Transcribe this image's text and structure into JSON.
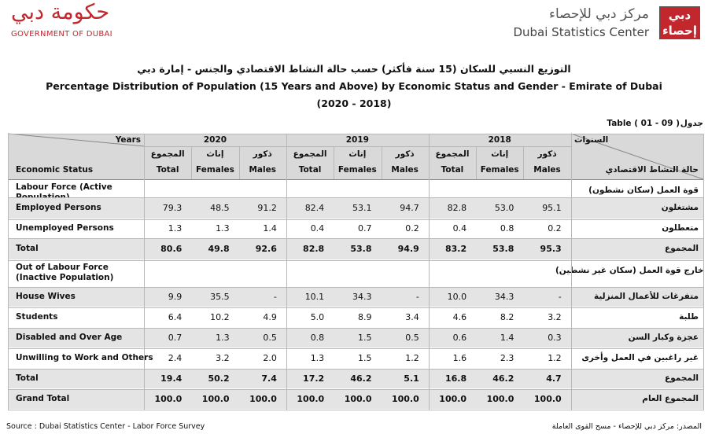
{
  "header": {
    "org_arabic": "حكومة دبي",
    "org_english": "GOVERNMENT OF DUBAI",
    "center_arabic": "مركز دبي للإحصاء",
    "center_english": "Dubai Statistics Center",
    "logo_text": "دبي إحصاء"
  },
  "title": {
    "arabic": "التوزيع النسبي للسكان (15 سنة فأكثر) حسب حالة النشاط الاقتصادي والجنس - إمارة دبي",
    "english": "Percentage Distribution of Population (15 Years and Above) by Economic Status and Gender - Emirate of Dubai",
    "years": "(2020 - 2018)"
  },
  "table_id": {
    "english": "Table ( 01 - 09 )",
    "arabic": "جدول"
  },
  "table": {
    "years_label": "Years",
    "years_label_arabic": "السنوات",
    "years": [
      "2020",
      "2019",
      "2018"
    ],
    "columns": [
      {
        "arabic": "المجموع",
        "english": "Total"
      },
      {
        "arabic": "إناث",
        "english": "Females"
      },
      {
        "arabic": "ذكور",
        "english": "Males"
      }
    ],
    "row_header": "Economic Status",
    "row_header_arabic": "حالة النشاط الاقتصادي",
    "rows": [
      {
        "label": "Labour Force (Active Population)",
        "label_arabic": "قوة العمل (سكان نشطون)"
      },
      {
        "label": "Employed Persons",
        "label_arabic": "مشتغلون",
        "shaded": true,
        "values": [
          "79.3",
          "48.5",
          "91.2",
          "82.4",
          "53.1",
          "94.7",
          "82.8",
          "53.0",
          "95.1"
        ]
      },
      {
        "label": "Unemployed Persons",
        "label_arabic": "متعطلون",
        "values": [
          "1.3",
          "1.3",
          "1.4",
          "0.4",
          "0.7",
          "0.2",
          "0.4",
          "0.8",
          "0.2"
        ]
      },
      {
        "label": "Total",
        "label_arabic": "المجموع",
        "shaded": true,
        "bold": true,
        "values": [
          "80.6",
          "49.8",
          "92.6",
          "82.8",
          "53.8",
          "94.9",
          "83.2",
          "53.8",
          "95.3"
        ]
      },
      {
        "label": "Out of Labour Force (Inactive Population)",
        "label_arabic": "خارج قوة العمل (سكان غير نشطين)"
      },
      {
        "label": "House Wives",
        "label_arabic": "متفرغات للأعمال المنزلية",
        "shaded": true,
        "values": [
          "9.9",
          "35.5",
          "-",
          "10.1",
          "34.3",
          "-",
          "10.0",
          "34.3",
          "-"
        ]
      },
      {
        "label": "Students",
        "label_arabic": "طلبة",
        "values": [
          "6.4",
          "10.2",
          "4.9",
          "5.0",
          "8.9",
          "3.4",
          "4.6",
          "8.2",
          "3.2"
        ]
      },
      {
        "label": "Disabled and Over Age",
        "label_arabic": "عجزة وكبار السن",
        "shaded": true,
        "values": [
          "0.7",
          "1.3",
          "0.5",
          "0.8",
          "1.5",
          "0.5",
          "0.6",
          "1.4",
          "0.3"
        ]
      },
      {
        "label": "Unwilling to Work and Others",
        "label_arabic": "غير راغبين في العمل وأخرى",
        "values": [
          "2.4",
          "3.2",
          "2.0",
          "1.3",
          "1.5",
          "1.2",
          "1.6",
          "2.3",
          "1.2"
        ]
      },
      {
        "label": "Total",
        "label_arabic": "المجموع",
        "shaded": true,
        "bold": true,
        "values": [
          "19.4",
          "50.2",
          "7.4",
          "17.2",
          "46.2",
          "5.1",
          "16.8",
          "46.2",
          "4.7"
        ]
      },
      {
        "label": "Grand Total",
        "label_arabic": "المجموع العام",
        "shaded": true,
        "bold": true,
        "values": [
          "100.0",
          "100.0",
          "100.0",
          "100.0",
          "100.0",
          "100.0",
          "100.0",
          "100.0",
          "100.0"
        ]
      }
    ]
  },
  "footer": {
    "source": "Source : Dubai Statistics Center - Labor Force Survey",
    "source_arabic": "المصدر: مركز دبي للإحصاء - مسح القوى العاملة"
  }
}
